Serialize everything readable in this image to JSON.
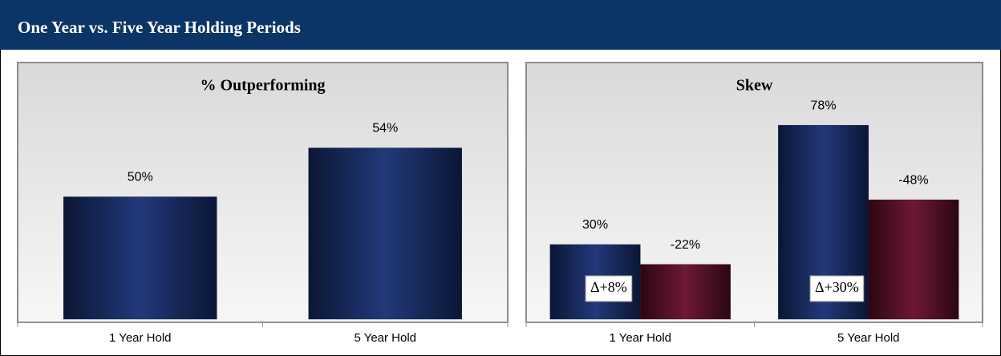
{
  "header": {
    "title": "One Year vs. Five Year Holding Periods"
  },
  "chart_data": [
    {
      "type": "bar",
      "title": "% Outperforming",
      "categories": [
        "1 Year Hold",
        "5 Year Hold"
      ],
      "values": [
        50,
        54
      ],
      "value_labels": [
        "50%",
        "54%"
      ],
      "color": "#15285a",
      "ylim": [
        40,
        56
      ]
    },
    {
      "type": "bar",
      "title": "Skew",
      "categories": [
        "1 Year Hold",
        "5 Year Hold"
      ],
      "series": [
        {
          "color": "#15285a",
          "values": [
            30,
            78
          ],
          "value_labels": [
            "30%",
            "78%"
          ]
        },
        {
          "color": "#4a0f24",
          "values": [
            -22,
            -48
          ],
          "value_labels": [
            "-22%",
            "-48%"
          ]
        }
      ],
      "annotations": [
        "Δ+8%",
        "Δ+30%"
      ],
      "ylim": [
        0,
        80
      ]
    }
  ]
}
